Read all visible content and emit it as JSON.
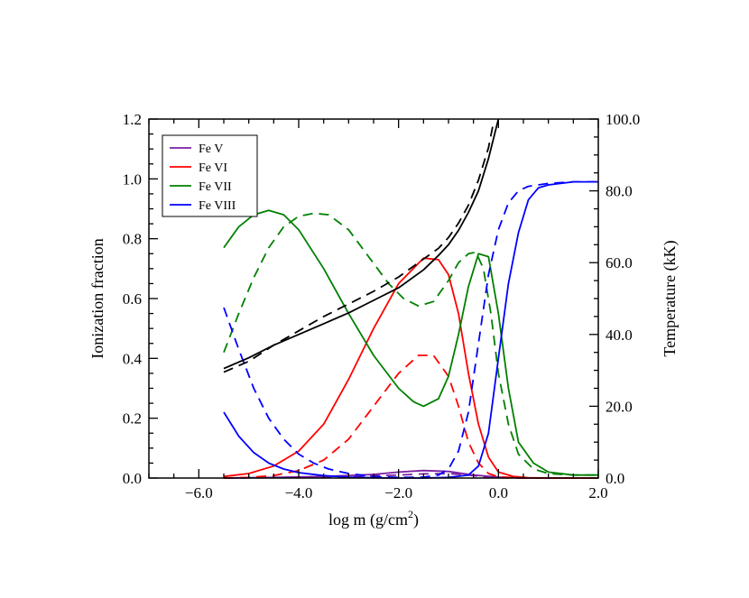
{
  "chart_data": {
    "type": "line",
    "xlabel": "log m (g/cm",
    "xlabel_sup": "2",
    "xlabel_close": ")",
    "ylabel_left": "Ionization fraction",
    "ylabel_right": "Temperature (kK)",
    "xlim": [
      -7.0,
      2.0
    ],
    "ylim_left": [
      0.0,
      1.2
    ],
    "ylim_right": [
      0.0,
      100.0
    ],
    "x_ticks": [
      {
        "value": -6.0,
        "label": "−6.0"
      },
      {
        "value": -4.0,
        "label": "−4.0"
      },
      {
        "value": -2.0,
        "label": "−2.0"
      },
      {
        "value": 0.0,
        "label": "0.0"
      },
      {
        "value": 2.0,
        "label": "2.0"
      }
    ],
    "y_left_ticks": [
      {
        "value": 0.0,
        "label": "0.0"
      },
      {
        "value": 0.2,
        "label": "0.2"
      },
      {
        "value": 0.4,
        "label": "0.4"
      },
      {
        "value": 0.6,
        "label": "0.6"
      },
      {
        "value": 0.8,
        "label": "0.8"
      },
      {
        "value": 1.0,
        "label": "1.0"
      },
      {
        "value": 1.2,
        "label": "1.2"
      }
    ],
    "y_right_ticks": [
      {
        "value": 0.0,
        "label": "0.0"
      },
      {
        "value": 20.0,
        "label": "20.0"
      },
      {
        "value": 40.0,
        "label": "40.0"
      },
      {
        "value": 60.0,
        "label": "60.0"
      },
      {
        "value": 80.0,
        "label": "80.0"
      },
      {
        "value": 100.0,
        "label": "100.0"
      }
    ],
    "legend": {
      "placement": "top-left",
      "entries": [
        {
          "name": "Fe V",
          "color": "#7b1fa2"
        },
        {
          "name": "Fe VI",
          "color": "#ff0000"
        },
        {
          "name": "Fe VII",
          "color": "#008000"
        },
        {
          "name": "Fe VIII",
          "color": "#0000ff"
        }
      ]
    },
    "series": [
      {
        "name": "Fe V",
        "axis": "left",
        "dash": false,
        "color": "#7b1fa2",
        "x": [
          -5.5,
          -4.5,
          -3.5,
          -2.5,
          -2.0,
          -1.5,
          -1.0,
          -0.5,
          0.0,
          0.5,
          2.0
        ],
        "y": [
          0.0,
          0.002,
          0.005,
          0.012,
          0.02,
          0.025,
          0.022,
          0.01,
          0.003,
          0.0,
          0.0
        ]
      },
      {
        "name": "Fe V",
        "axis": "left",
        "dash": true,
        "color": "#7b1fa2",
        "x": [
          -5.5,
          -4.0,
          -3.0,
          -2.0,
          -1.5,
          -1.0,
          -0.6,
          -0.3,
          0.0,
          0.5,
          2.0
        ],
        "y": [
          0.0,
          0.002,
          0.005,
          0.01,
          0.014,
          0.015,
          0.01,
          0.004,
          0.001,
          0.0,
          0.0
        ]
      },
      {
        "name": "Fe VI",
        "axis": "left",
        "dash": false,
        "color": "#ff0000",
        "x": [
          -5.5,
          -5.0,
          -4.5,
          -4.0,
          -3.5,
          -3.0,
          -2.5,
          -2.0,
          -1.5,
          -1.2,
          -1.0,
          -0.8,
          -0.6,
          -0.4,
          -0.2,
          0.0,
          0.3,
          0.6,
          1.0,
          2.0
        ],
        "y": [
          0.005,
          0.015,
          0.04,
          0.09,
          0.18,
          0.33,
          0.5,
          0.65,
          0.735,
          0.73,
          0.68,
          0.55,
          0.35,
          0.18,
          0.07,
          0.02,
          0.005,
          0.001,
          0.0,
          0.0
        ]
      },
      {
        "name": "Fe VI",
        "axis": "left",
        "dash": true,
        "color": "#ff0000",
        "x": [
          -5.5,
          -5.0,
          -4.5,
          -4.0,
          -3.5,
          -3.0,
          -2.5,
          -2.0,
          -1.6,
          -1.3,
          -1.0,
          -0.8,
          -0.6,
          -0.4,
          -0.2,
          0.0,
          0.5,
          2.0
        ],
        "y": [
          0.0,
          0.002,
          0.008,
          0.025,
          0.06,
          0.13,
          0.24,
          0.35,
          0.41,
          0.41,
          0.34,
          0.24,
          0.12,
          0.05,
          0.015,
          0.004,
          0.0,
          0.0
        ]
      },
      {
        "name": "Fe VII",
        "axis": "left",
        "dash": false,
        "color": "#008000",
        "x": [
          -5.5,
          -5.2,
          -4.9,
          -4.6,
          -4.3,
          -4.0,
          -3.5,
          -3.0,
          -2.5,
          -2.0,
          -1.7,
          -1.5,
          -1.2,
          -1.0,
          -0.8,
          -0.6,
          -0.4,
          -0.2,
          0.0,
          0.2,
          0.4,
          0.7,
          1.0,
          1.5,
          2.0
        ],
        "y": [
          0.77,
          0.84,
          0.88,
          0.895,
          0.88,
          0.83,
          0.7,
          0.55,
          0.41,
          0.3,
          0.255,
          0.24,
          0.265,
          0.34,
          0.48,
          0.64,
          0.75,
          0.74,
          0.55,
          0.3,
          0.12,
          0.05,
          0.02,
          0.01,
          0.01
        ]
      },
      {
        "name": "Fe VII",
        "axis": "left",
        "dash": true,
        "color": "#008000",
        "x": [
          -5.5,
          -5.2,
          -4.9,
          -4.6,
          -4.3,
          -4.0,
          -3.7,
          -3.4,
          -3.0,
          -2.6,
          -2.2,
          -1.9,
          -1.6,
          -1.3,
          -1.0,
          -0.8,
          -0.6,
          -0.45,
          -0.3,
          -0.15,
          0.0,
          0.2,
          0.4,
          0.7,
          1.0,
          1.5,
          2.0
        ],
        "y": [
          0.42,
          0.55,
          0.67,
          0.77,
          0.84,
          0.875,
          0.885,
          0.88,
          0.83,
          0.74,
          0.65,
          0.6,
          0.575,
          0.59,
          0.66,
          0.72,
          0.75,
          0.755,
          0.7,
          0.55,
          0.35,
          0.18,
          0.08,
          0.03,
          0.015,
          0.01,
          0.01
        ]
      },
      {
        "name": "Fe VIII",
        "axis": "left",
        "dash": false,
        "color": "#0000ff",
        "x": [
          -5.5,
          -5.2,
          -4.9,
          -4.6,
          -4.3,
          -4.0,
          -3.5,
          -3.0,
          -2.5,
          -2.0,
          -1.5,
          -1.0,
          -0.6,
          -0.4,
          -0.2,
          0.0,
          0.2,
          0.4,
          0.6,
          0.8,
          1.0,
          1.5,
          2.0
        ],
        "y": [
          0.22,
          0.14,
          0.085,
          0.05,
          0.03,
          0.018,
          0.008,
          0.003,
          0.001,
          0.0,
          0.0,
          0.002,
          0.01,
          0.04,
          0.15,
          0.4,
          0.65,
          0.82,
          0.93,
          0.97,
          0.98,
          0.99,
          0.99
        ]
      },
      {
        "name": "Fe VIII",
        "axis": "left",
        "dash": true,
        "color": "#0000ff",
        "x": [
          -5.5,
          -5.2,
          -4.9,
          -4.6,
          -4.3,
          -4.0,
          -3.7,
          -3.4,
          -3.0,
          -2.5,
          -2.0,
          -1.5,
          -1.2,
          -1.0,
          -0.8,
          -0.6,
          -0.4,
          -0.2,
          0.0,
          0.2,
          0.4,
          0.6,
          0.8,
          1.0,
          1.5,
          2.0
        ],
        "y": [
          0.57,
          0.43,
          0.3,
          0.2,
          0.13,
          0.08,
          0.05,
          0.03,
          0.015,
          0.005,
          0.002,
          0.003,
          0.01,
          0.03,
          0.09,
          0.22,
          0.45,
          0.68,
          0.83,
          0.92,
          0.96,
          0.975,
          0.98,
          0.985,
          0.99,
          0.99
        ]
      },
      {
        "name": "Temperature",
        "axis": "right",
        "dash": false,
        "color": "#000000",
        "x": [
          -5.5,
          -5.0,
          -4.5,
          -4.0,
          -3.5,
          -3.0,
          -2.5,
          -2.0,
          -1.5,
          -1.2,
          -1.0,
          -0.8,
          -0.6,
          -0.4,
          -0.2,
          0.0
        ],
        "y": [
          30.5,
          33.5,
          37,
          40,
          43,
          46,
          49.5,
          53,
          58,
          62,
          65,
          69,
          74,
          80,
          89,
          100
        ]
      },
      {
        "name": "Temperature",
        "axis": "right",
        "dash": true,
        "color": "#000000",
        "x": [
          -5.5,
          -5.0,
          -4.5,
          -4.0,
          -3.5,
          -3.0,
          -2.5,
          -2.0,
          -1.5,
          -1.2,
          -1.0,
          -0.8,
          -0.6,
          -0.4,
          -0.2,
          -0.1
        ],
        "y": [
          29.5,
          32.5,
          37,
          41,
          45,
          48.5,
          52,
          56,
          61,
          64,
          67,
          71,
          76,
          83,
          92,
          99
        ]
      }
    ]
  }
}
